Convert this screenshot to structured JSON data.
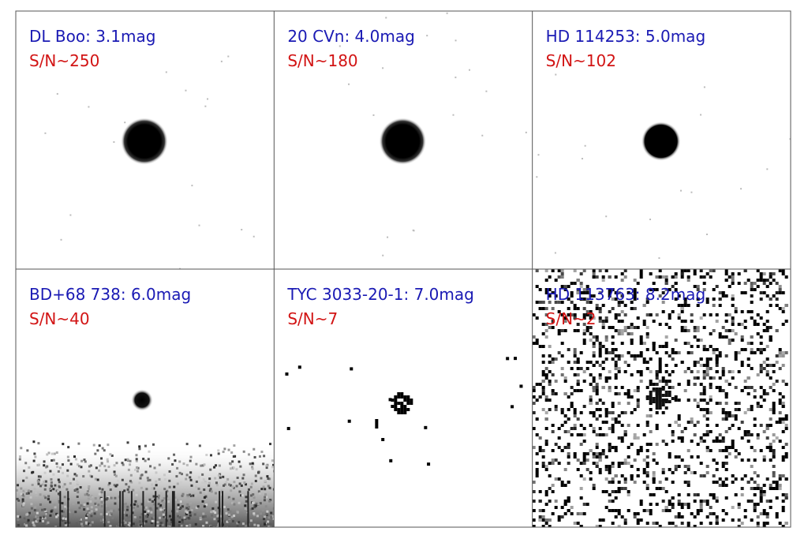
{
  "colors": {
    "name_text": "#1a1ab4",
    "snr_text": "#d21414",
    "frame": "#555555",
    "background": "#ffffff",
    "pixels": "#000000"
  },
  "panels": [
    {
      "name": "DL Boo: 3.1mag",
      "snr": "S/N~250",
      "star": "large-bright",
      "noise": "minimal"
    },
    {
      "name": "20 CVn: 4.0mag",
      "snr": "S/N~180",
      "star": "large-bright",
      "noise": "minimal"
    },
    {
      "name": "HD 114253: 5.0mag",
      "snr": "S/N~102",
      "star": "medium",
      "noise": "minimal"
    },
    {
      "name": "BD+68 738: 6.0mag",
      "snr": "S/N~40",
      "star": "small",
      "noise": "gradient-bottom"
    },
    {
      "name": "TYC 3033-20-1: 7.0mag",
      "snr": "S/N~7",
      "star": "faint-blocky",
      "noise": "sparse"
    },
    {
      "name": "HD 113763: 8.2mag",
      "snr": "S/N~2",
      "star": "faint-in-noise",
      "noise": "heavy"
    }
  ]
}
